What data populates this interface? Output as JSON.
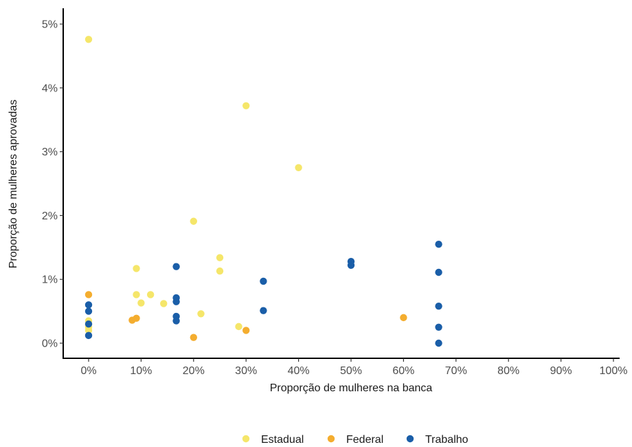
{
  "chart_data": {
    "type": "scatter",
    "title": "",
    "xlabel": "Proporção de mulheres na banca",
    "ylabel": "Proporção de mulheres aprovadas",
    "xlim": [
      0,
      100
    ],
    "ylim": [
      0,
      5
    ],
    "x_ticks": [
      0,
      10,
      20,
      30,
      40,
      50,
      60,
      70,
      80,
      90,
      100
    ],
    "y_ticks": [
      0,
      1,
      2,
      3,
      4,
      5
    ],
    "x_tick_labels": [
      "0%",
      "10%",
      "20%",
      "30%",
      "40%",
      "50%",
      "60%",
      "70%",
      "80%",
      "90%",
      "100%"
    ],
    "y_tick_labels": [
      "0%",
      "1%",
      "2%",
      "3%",
      "4%",
      "5%"
    ],
    "grid": false,
    "legend_position": "bottom",
    "series": [
      {
        "name": "Estadual",
        "color": "#f5e66a",
        "points": [
          [
            0,
            4.76
          ],
          [
            0,
            0.35
          ],
          [
            0,
            0.3
          ],
          [
            0,
            0.25
          ],
          [
            0,
            0.2
          ],
          [
            9.1,
            1.17
          ],
          [
            9.1,
            0.76
          ],
          [
            10,
            0.63
          ],
          [
            11.8,
            0.76
          ],
          [
            14.3,
            0.62
          ],
          [
            20,
            1.91
          ],
          [
            21.4,
            0.46
          ],
          [
            25,
            1.34
          ],
          [
            25,
            1.13
          ],
          [
            28.6,
            0.26
          ],
          [
            30,
            3.72
          ],
          [
            40,
            2.75
          ]
        ]
      },
      {
        "name": "Federal",
        "color": "#f4ad2f",
        "points": [
          [
            0,
            0.76
          ],
          [
            8.3,
            0.36
          ],
          [
            9.1,
            0.39
          ],
          [
            20,
            0.09
          ],
          [
            30,
            0.2
          ],
          [
            60,
            0.4
          ]
        ]
      },
      {
        "name": "Trabalho",
        "color": "#1a5ea8",
        "points": [
          [
            0,
            0.6
          ],
          [
            0,
            0.5
          ],
          [
            0,
            0.3
          ],
          [
            0,
            0.12
          ],
          [
            16.7,
            1.2
          ],
          [
            16.7,
            0.71
          ],
          [
            16.7,
            0.65
          ],
          [
            16.7,
            0.42
          ],
          [
            16.7,
            0.35
          ],
          [
            33.3,
            0.97
          ],
          [
            33.3,
            0.51
          ],
          [
            50,
            1.28
          ],
          [
            50,
            1.22
          ],
          [
            66.7,
            1.55
          ],
          [
            66.7,
            1.11
          ],
          [
            66.7,
            0.58
          ],
          [
            66.7,
            0.25
          ],
          [
            66.7,
            0.0
          ]
        ]
      }
    ]
  }
}
